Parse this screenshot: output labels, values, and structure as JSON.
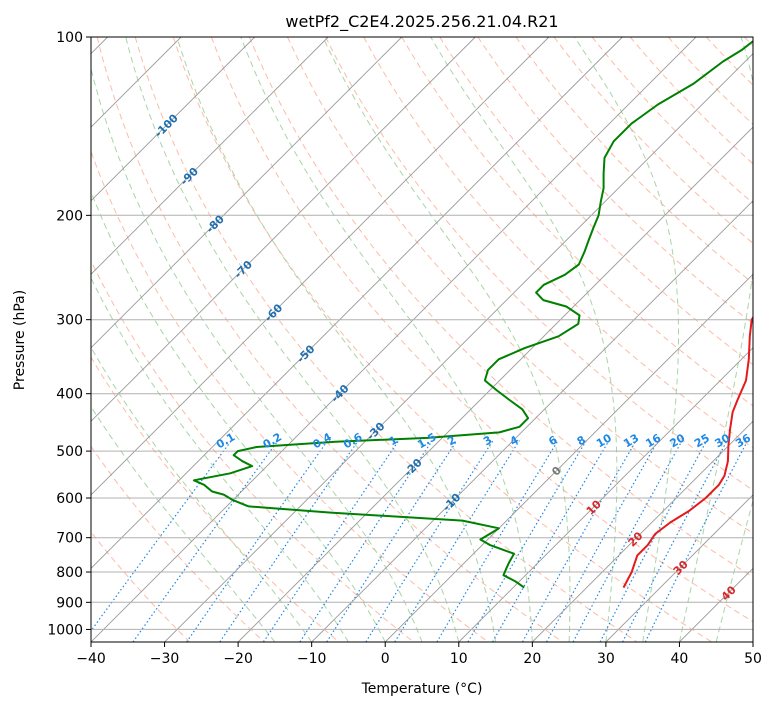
{
  "chart_data": {
    "type": "line",
    "subtype": "skew-t log-p",
    "title": "wetPf2_C2E4.2025.256.21.04.R21",
    "xlabel": "Temperature (°C)",
    "ylabel": "Pressure (hPa)",
    "xlim": [
      -40,
      50
    ],
    "ylim": [
      1050,
      100
    ],
    "y_scale": "log",
    "x_ticks": [
      "−40",
      "−30",
      "−20",
      "−10",
      "0",
      "10",
      "20",
      "30",
      "40",
      "50"
    ],
    "x_tick_values": [
      -40,
      -30,
      -20,
      -10,
      0,
      10,
      20,
      30,
      40,
      50
    ],
    "y_ticks": [
      "100",
      "200",
      "300",
      "400",
      "500",
      "600",
      "700",
      "800",
      "900",
      "1000"
    ],
    "y_tick_values": [
      100,
      200,
      300,
      400,
      500,
      600,
      700,
      800,
      900,
      1000
    ],
    "grid": true,
    "colors": {
      "temperature": "#e41a1c",
      "dewpoint": "#008000",
      "isotherm": "#999999",
      "dry_adiabat": "#fdbba6",
      "moist_adiabat": "#a8d5a8",
      "mixing_ratio": "#1e88e5",
      "isotherm_label_neg": "#1f6fb0",
      "isotherm_label_pos": "#d62728"
    },
    "series": [
      {
        "key": "temperature",
        "points": [
          [
            25,
            850
          ],
          [
            24,
            800
          ],
          [
            22.5,
            750
          ],
          [
            22.5,
            720
          ],
          [
            22,
            690
          ],
          [
            22.5,
            660
          ],
          [
            23.5,
            630
          ],
          [
            24,
            600
          ],
          [
            24,
            570
          ],
          [
            23.5,
            550
          ],
          [
            22,
            520
          ],
          [
            20,
            490
          ],
          [
            18,
            460
          ],
          [
            16,
            430
          ],
          [
            15,
            410
          ],
          [
            13.5,
            380
          ],
          [
            11,
            350
          ],
          [
            8,
            320
          ],
          [
            6,
            300
          ],
          [
            4.5,
            270
          ],
          [
            3,
            245
          ],
          [
            1.5,
            220
          ],
          [
            0,
            200
          ],
          [
            -1.5,
            180
          ],
          [
            -3,
            160
          ],
          [
            -4.5,
            140
          ],
          [
            -5.5,
            125
          ],
          [
            -5.5,
            115
          ],
          [
            -4,
            108
          ],
          [
            -2,
            103
          ],
          [
            -1,
            100
          ]
        ]
      },
      {
        "key": "dewpoint",
        "points": [
          [
            11.5,
            850
          ],
          [
            9.5,
            830
          ],
          [
            7,
            810
          ],
          [
            6.5,
            790
          ],
          [
            6,
            770
          ],
          [
            5.5,
            745
          ],
          [
            1,
            720
          ],
          [
            -1,
            705
          ],
          [
            -0.5,
            690
          ],
          [
            0,
            675
          ],
          [
            -6,
            655
          ],
          [
            -25,
            635
          ],
          [
            -37,
            620
          ],
          [
            -40,
            605
          ],
          [
            -42,
            592
          ],
          [
            -44,
            585
          ],
          [
            -46,
            570
          ],
          [
            -48,
            560
          ],
          [
            -44,
            545
          ],
          [
            -42,
            530
          ],
          [
            -44,
            520
          ],
          [
            -46,
            508
          ],
          [
            -46,
            500
          ],
          [
            -44,
            492
          ],
          [
            -34,
            482
          ],
          [
            -22,
            475
          ],
          [
            -13,
            465
          ],
          [
            -11,
            455
          ],
          [
            -11,
            440
          ],
          [
            -13,
            425
          ],
          [
            -16,
            410
          ],
          [
            -19,
            395
          ],
          [
            -22,
            380
          ],
          [
            -23,
            365
          ],
          [
            -23,
            350
          ],
          [
            -21,
            335
          ],
          [
            -18,
            320
          ],
          [
            -17,
            305
          ],
          [
            -18,
            295
          ],
          [
            -21,
            285
          ],
          [
            -25,
            278
          ],
          [
            -27,
            270
          ],
          [
            -27,
            262
          ],
          [
            -25.5,
            252
          ],
          [
            -25,
            242
          ],
          [
            -26,
            230
          ],
          [
            -27,
            220
          ],
          [
            -28,
            210
          ],
          [
            -29,
            200
          ],
          [
            -30.5,
            190
          ],
          [
            -32,
            180
          ],
          [
            -34,
            170
          ],
          [
            -36,
            160
          ],
          [
            -37,
            150
          ],
          [
            -37,
            140
          ],
          [
            -36,
            130
          ],
          [
            -34,
            120
          ],
          [
            -33,
            110
          ],
          [
            -32,
            105
          ],
          [
            -31.5,
            100
          ]
        ]
      }
    ],
    "isotherm_labels": [
      "-100",
      "-90",
      "-80",
      "-70",
      "-60",
      "-50",
      "-40",
      "-30",
      "-20",
      "-10",
      "0",
      "10",
      "20",
      "30",
      "40"
    ],
    "isotherm_label_values": [
      -100,
      -90,
      -80,
      -70,
      -60,
      -50,
      -40,
      -30,
      -20,
      -10,
      0,
      10,
      20,
      30,
      40
    ],
    "mixing_ratio_labels": [
      "0.1",
      "0.2",
      "0.4",
      "0.6",
      "1",
      "1.5",
      "2",
      "3",
      "4",
      "6",
      "8",
      "10",
      "13",
      "16",
      "20",
      "25",
      "30",
      "36"
    ],
    "mixing_ratio_values": [
      0.1,
      0.2,
      0.4,
      0.6,
      1,
      1.5,
      2,
      3,
      4,
      6,
      8,
      10,
      13,
      16,
      20,
      25,
      30,
      36
    ]
  }
}
